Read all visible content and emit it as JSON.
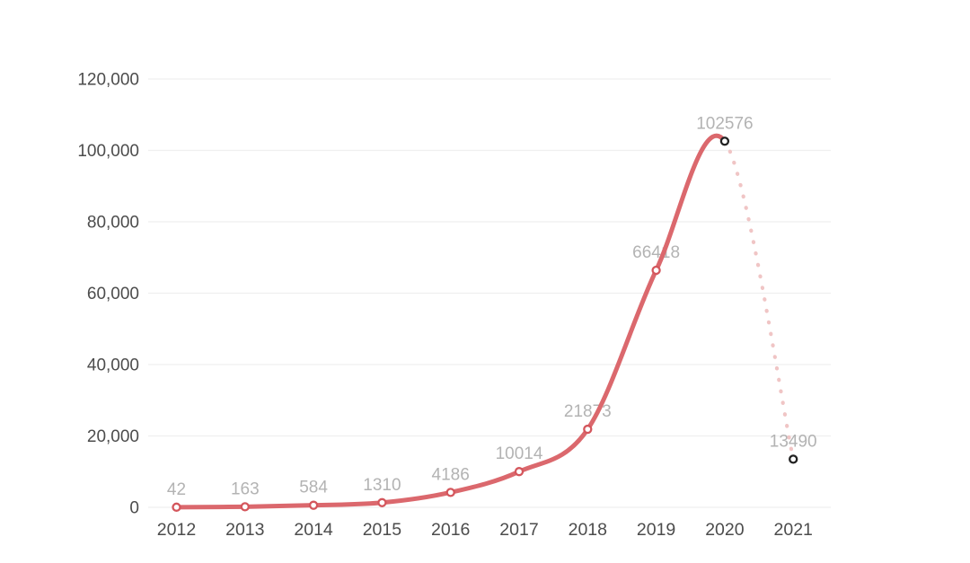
{
  "chart_data": {
    "type": "line",
    "categories": [
      "2012",
      "2013",
      "2014",
      "2015",
      "2016",
      "2017",
      "2018",
      "2019",
      "2020",
      "2021"
    ],
    "values": [
      42,
      163,
      584,
      1310,
      4186,
      10014,
      21873,
      66418,
      102576,
      13490
    ],
    "value_labels": [
      "42",
      "163",
      "584",
      "1310",
      "4186",
      "10014",
      "21873",
      "66418",
      "102576",
      "13490"
    ],
    "title": "",
    "xlabel": "",
    "ylabel": "",
    "ylim": [
      0,
      120000
    ],
    "yticks": [
      0,
      20000,
      40000,
      60000,
      80000,
      100000,
      120000
    ],
    "ytick_labels": [
      "0",
      "20,000",
      "40,000",
      "60,000",
      "80,000",
      "100,000",
      "120,000"
    ],
    "grid": true,
    "legend_position": "none",
    "solid_segment": {
      "from": "2012",
      "to": "2020"
    },
    "dotted_segment": {
      "from": "2020",
      "to": "2021"
    },
    "dark_marker_categories": [
      "2020",
      "2021"
    ],
    "colors": {
      "line": "#db686d",
      "dotted_line": "#f0c5c5",
      "marker_fill": "#ffffff",
      "marker_stroke": "#d4565c",
      "marker_stroke_dark": "#222222",
      "value_label": "#b3b3b3",
      "axis_label": "#4c4c4c",
      "gridline": "#efefef",
      "background": "#ffffff"
    }
  }
}
